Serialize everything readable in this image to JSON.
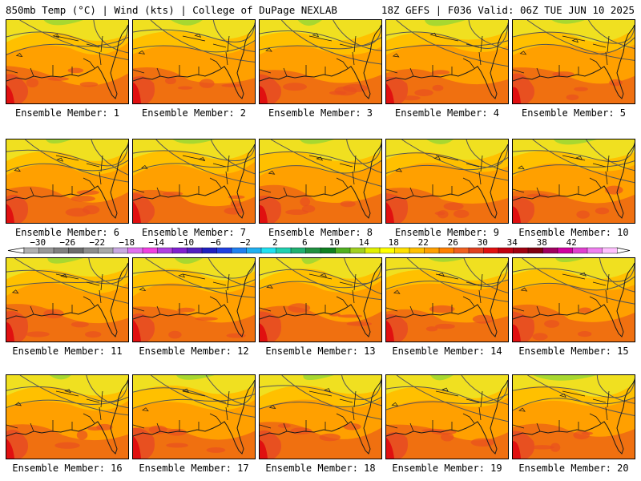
{
  "header": {
    "left": "850mb Temp (°C) | Wind (kts) | College of DuPage NEXLAB",
    "right": "18Z GEFS | F036 Valid: 06Z TUE JUN 10 2025"
  },
  "member_label_prefix": "Ensemble Member:",
  "members": [
    {
      "number": "1",
      "label": "Ensemble Member: 1"
    },
    {
      "number": "2",
      "label": "Ensemble Member: 2"
    },
    {
      "number": "3",
      "label": "Ensemble Member: 3"
    },
    {
      "number": "4",
      "label": "Ensemble Member: 4"
    },
    {
      "number": "5",
      "label": "Ensemble Member: 5"
    },
    {
      "number": "6",
      "label": "Ensemble Member: 6"
    },
    {
      "number": "7",
      "label": "Ensemble Member: 7"
    },
    {
      "number": "8",
      "label": "Ensemble Member: 8"
    },
    {
      "number": "9",
      "label": "Ensemble Member: 9"
    },
    {
      "number": "10",
      "label": "Ensemble Member: 10"
    },
    {
      "number": "11",
      "label": "Ensemble Member: 11"
    },
    {
      "number": "12",
      "label": "Ensemble Member: 12"
    },
    {
      "number": "13",
      "label": "Ensemble Member: 13"
    },
    {
      "number": "14",
      "label": "Ensemble Member: 14"
    },
    {
      "number": "15",
      "label": "Ensemble Member: 15"
    },
    {
      "number": "16",
      "label": "Ensemble Member: 16"
    },
    {
      "number": "17",
      "label": "Ensemble Member: 17"
    },
    {
      "number": "18",
      "label": "Ensemble Member: 18"
    },
    {
      "number": "19",
      "label": "Ensemble Member: 19"
    },
    {
      "number": "20",
      "label": "Ensemble Member: 20"
    }
  ],
  "colorbar": {
    "labels": [
      "−30",
      "−26",
      "−22",
      "−18",
      "−14",
      "−10",
      "−6",
      "−2",
      "2",
      "6",
      "10",
      "14",
      "18",
      "22",
      "26",
      "30",
      "34",
      "38",
      "42"
    ],
    "colors": [
      "#b0b0b0",
      "#989898",
      "#808080",
      "#6c6c6c",
      "#8c8c8c",
      "#a8a8a8",
      "#c8a8e0",
      "#e070f0",
      "#f040e0",
      "#b040e0",
      "#8020d0",
      "#5020c0",
      "#2020c0",
      "#2040e0",
      "#2080f0",
      "#20b0f0",
      "#20e0f0",
      "#20d0b0",
      "#20b070",
      "#209040",
      "#108020",
      "#50b020",
      "#a0d020",
      "#e0f000",
      "#ffff00",
      "#ffe000",
      "#ffc000",
      "#ffa000",
      "#ff8000",
      "#f06020",
      "#e04020",
      "#e01010",
      "#c00010",
      "#a00010",
      "#800010",
      "#a00060",
      "#d000a0",
      "#e040d0",
      "#f080f0",
      "#ffc0ff"
    ]
  },
  "colors": {
    "cool": "#f0e020",
    "mild": "#ffc000",
    "warm": "#ffa000",
    "hot": "#f07010",
    "hotter": "#e85020",
    "extreme": "#e01010",
    "green": "#a8d830",
    "contour": "#555555",
    "coast": "#1a1a1a"
  }
}
